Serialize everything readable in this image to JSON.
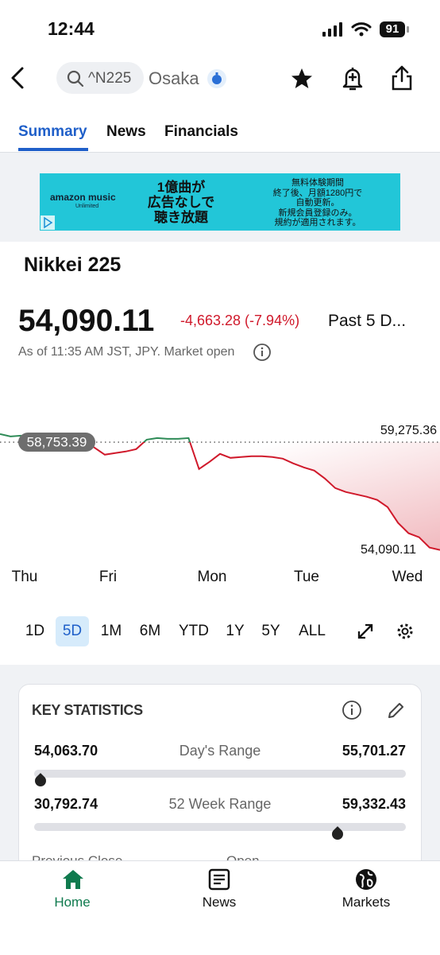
{
  "status_bar": {
    "time": "12:44",
    "battery": "91"
  },
  "header": {
    "search": "^N225",
    "exchange": "Osaka"
  },
  "tabs": [
    "Summary",
    "News",
    "Financials"
  ],
  "ad": {
    "brand": "amazon music",
    "brand_sub": "Unlimited",
    "headline": [
      "1億曲が",
      "広告なしで",
      "聴き放題"
    ],
    "body": [
      "無料体験期間",
      "終了後、月額1280円で",
      "自動更新。",
      "新規会員登録のみ。",
      "規約が適用されます。"
    ]
  },
  "quote": {
    "name": "Nikkei 225",
    "price": {
      "value": 54090.11,
      "label": "54,090.11"
    },
    "change": "-4,663.28 (-7.94%)",
    "period": "Past 5 D...",
    "as_of": "As of 11:35 AM JST, JPY. Market open"
  },
  "chart_data": {
    "type": "line",
    "values": [
      59104,
      59001,
      59035,
      58863,
      58898,
      58932,
      58863,
      58898,
      58829,
      58520,
      58211,
      58280,
      58348,
      58451,
      58863,
      58932,
      58898,
      58898,
      58932,
      57593,
      57902,
      58245,
      58074,
      58108,
      58142,
      58142,
      58108,
      58039,
      57833,
      57661,
      57524,
      57181,
      56768,
      56597,
      56494,
      56391,
      56254,
      55945,
      55258,
      54812,
      54640,
      54194,
      54090.11
    ],
    "x_labels": [
      "Thu",
      "Fri",
      "Mon",
      "Tue",
      "Wed"
    ],
    "ylim": [
      53800,
      59650
    ],
    "previous_close": {
      "value": 58753.39,
      "label": "58,753.39"
    },
    "high": {
      "value": 59275.36,
      "label": "59,275.36"
    },
    "low": {
      "value": 54090.11,
      "label": "54,090.11"
    },
    "color_above": "#2e8b57",
    "color_below": "#d0192b"
  },
  "ranges": [
    "1D",
    "5D",
    "1M",
    "6M",
    "YTD",
    "1Y",
    "5Y",
    "ALL"
  ],
  "selected_range": 1,
  "key_statistics": {
    "title": "KEY STATISTICS",
    "days_range": {
      "label": "Day's Range",
      "low": {
        "value": 54063.7,
        "label": "54,063.70"
      },
      "high": {
        "value": 55701.27,
        "label": "55,701.27"
      }
    },
    "week52_range": {
      "label": "52 Week Range",
      "low": {
        "value": 30792.74,
        "label": "30,792.74"
      },
      "high": {
        "value": 59332.43,
        "label": "59,332.43"
      }
    },
    "next_row": [
      "Previous Close",
      "Open"
    ]
  },
  "nav": [
    "Home",
    "News",
    "Markets"
  ]
}
